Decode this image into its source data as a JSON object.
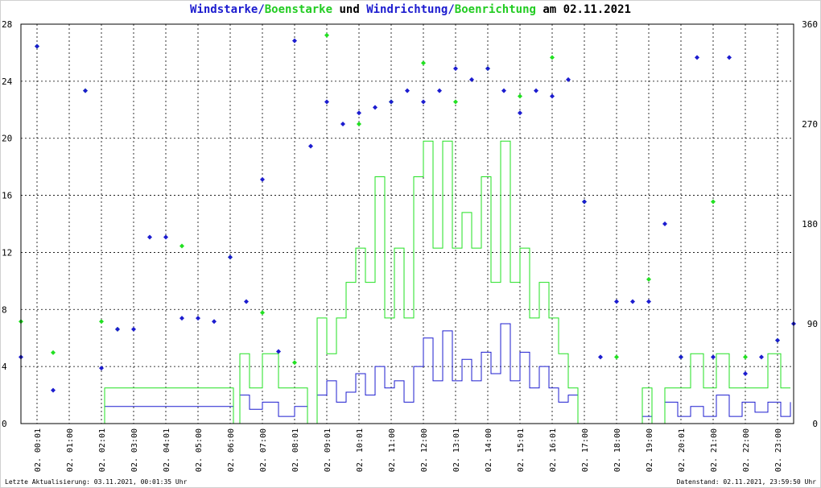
{
  "title": {
    "part1": "Windstarke",
    "slash1": "/",
    "part2": "Boenstarke",
    "mid": " und ",
    "part3": "Windrichtung",
    "slash2": "/",
    "part4": "Boenrichtung",
    "tail": " am 02.11.2021"
  },
  "footer": {
    "left": "Letzte Aktualisierung: 03.11.2021, 00:01:35 Uhr",
    "right": "Datenstand: 02.11.2021, 23:59:50 Uhr"
  },
  "colors": {
    "wind": "#1c1ccf",
    "gust": "#22e022",
    "grid": "#000000"
  },
  "chart_data": {
    "type": "line",
    "x_unit": "hours",
    "xlim": [
      0,
      24
    ],
    "ylim_left": [
      0,
      28
    ],
    "ylim_right": [
      0,
      360
    ],
    "left_ticks": [
      "0",
      "4",
      "8",
      "12",
      "16",
      "20",
      "24",
      "28"
    ],
    "right_ticks": [
      "0",
      "90",
      "180",
      "270",
      "360"
    ],
    "x_tick_labels": [
      "02. 00:01",
      "02. 01:00",
      "02. 02:01",
      "02. 03:00",
      "02. 04:01",
      "02. 05:00",
      "02. 06:00",
      "02. 07:00",
      "02. 08:01",
      "02. 09:01",
      "02. 10:01",
      "02. 11:00",
      "02. 12:00",
      "02. 13:01",
      "02. 14:00",
      "02. 15:01",
      "02. 16:01",
      "02. 17:00",
      "02. 18:00",
      "02. 19:00",
      "02. 20:01",
      "02. 21:00",
      "02. 22:00",
      "02. 23:00"
    ],
    "grid": true,
    "series": [
      {
        "name": "Windstarke",
        "axis": "left",
        "kind": "line",
        "x": [
          0,
          2.4,
          2.6,
          6.6,
          6.8,
          7.1,
          7.5,
          8.0,
          8.5,
          8.9,
          9.2,
          9.5,
          9.8,
          10.1,
          10.4,
          10.7,
          11.0,
          11.3,
          11.6,
          11.9,
          12.2,
          12.5,
          12.8,
          13.1,
          13.4,
          13.7,
          14.0,
          14.3,
          14.6,
          14.9,
          15.2,
          15.5,
          15.8,
          16.1,
          16.4,
          16.7,
          17.0,
          17.3,
          17.6,
          19.3,
          19.6,
          20.0,
          20.4,
          20.8,
          21.2,
          21.6,
          22.0,
          22.4,
          22.8,
          23.2,
          23.6,
          23.9
        ],
        "values": [
          0,
          0,
          1.2,
          0,
          2,
          1,
          1.5,
          0.5,
          1.2,
          0,
          2,
          3,
          1.5,
          2.2,
          3.5,
          2,
          4,
          2.5,
          3,
          1.5,
          4,
          6,
          3,
          6.5,
          3,
          4.5,
          3,
          5,
          3.5,
          7,
          3,
          5,
          2.5,
          4,
          2.5,
          1.5,
          2,
          0,
          0,
          0.5,
          0,
          1.5,
          0.5,
          1.2,
          0.5,
          2,
          0.5,
          1.5,
          0.8,
          1.5,
          0.5,
          1.5
        ]
      },
      {
        "name": "Boenstarke",
        "axis": "left",
        "kind": "line",
        "x": [
          0,
          2.4,
          2.6,
          6.6,
          6.8,
          7.1,
          7.5,
          8.0,
          8.5,
          8.9,
          9.2,
          9.5,
          9.8,
          10.1,
          10.4,
          10.7,
          11.0,
          11.3,
          11.6,
          11.9,
          12.2,
          12.5,
          12.8,
          13.1,
          13.4,
          13.7,
          14.0,
          14.3,
          14.6,
          14.9,
          15.2,
          15.5,
          15.8,
          16.1,
          16.4,
          16.7,
          17.0,
          17.3,
          17.6,
          19.3,
          19.6,
          20.0,
          20.4,
          20.8,
          21.2,
          21.6,
          22.0,
          22.4,
          22.8,
          23.2,
          23.6,
          23.9
        ],
        "values": [
          0,
          0,
          2.5,
          0,
          4.9,
          2.5,
          4.9,
          2.5,
          2.5,
          0,
          7.4,
          4.9,
          7.4,
          9.9,
          12.3,
          9.9,
          17.3,
          7.4,
          12.3,
          7.4,
          17.3,
          19.8,
          12.3,
          19.8,
          12.3,
          14.8,
          12.3,
          17.3,
          9.9,
          19.8,
          9.9,
          12.3,
          7.4,
          9.9,
          7.4,
          4.9,
          2.5,
          0,
          0,
          2.5,
          0,
          2.5,
          2.5,
          4.9,
          2.5,
          4.9,
          2.5,
          2.5,
          2.5,
          4.9,
          2.5,
          2.5
        ]
      },
      {
        "name": "Windrichtung",
        "axis": "right",
        "kind": "points",
        "x": [
          0.0,
          0.5,
          1.0,
          2.0,
          2.5,
          3.0,
          3.5,
          4.0,
          4.5,
          5.0,
          5.5,
          6.0,
          6.5,
          7.0,
          7.5,
          8.0,
          8.5,
          9.0,
          9.5,
          10.0,
          10.5,
          11.0,
          11.5,
          12.0,
          12.5,
          13.0,
          13.5,
          14.0,
          14.5,
          15.0,
          15.5,
          16.0,
          16.5,
          17.0,
          17.5,
          18.0,
          18.5,
          19.0,
          19.5,
          20.0,
          20.5,
          21.0,
          21.5,
          22.0,
          22.5,
          23.0,
          23.5,
          24.0
        ],
        "values": [
          60,
          340,
          30,
          300,
          50,
          85,
          85,
          168,
          168,
          95,
          95,
          92,
          150,
          110,
          220,
          65,
          345,
          250,
          290,
          270,
          280,
          285,
          290,
          300,
          290,
          300,
          320,
          310,
          320,
          300,
          280,
          300,
          295,
          310,
          200,
          60,
          110,
          110,
          110,
          180,
          60,
          330,
          60,
          330,
          45,
          60,
          75,
          90
        ]
      },
      {
        "name": "Boenrichtung",
        "axis": "right",
        "kind": "points",
        "x": [
          0.0,
          0.5,
          1.0,
          2.0,
          2.5,
          3.0,
          5.0,
          6.5,
          7.5,
          8.5,
          9.5,
          10.5,
          11.5,
          12.5,
          13.5,
          14.5,
          15.5,
          16.5,
          17.5,
          18.5,
          19.5,
          20.5,
          21.5,
          22.5,
          23.5
        ],
        "values": [
          92,
          340,
          64,
          300,
          92,
          85,
          160,
          150,
          100,
          55,
          350,
          270,
          290,
          325,
          290,
          320,
          295,
          330,
          200,
          60,
          130,
          60,
          200,
          60,
          75
        ]
      }
    ]
  }
}
